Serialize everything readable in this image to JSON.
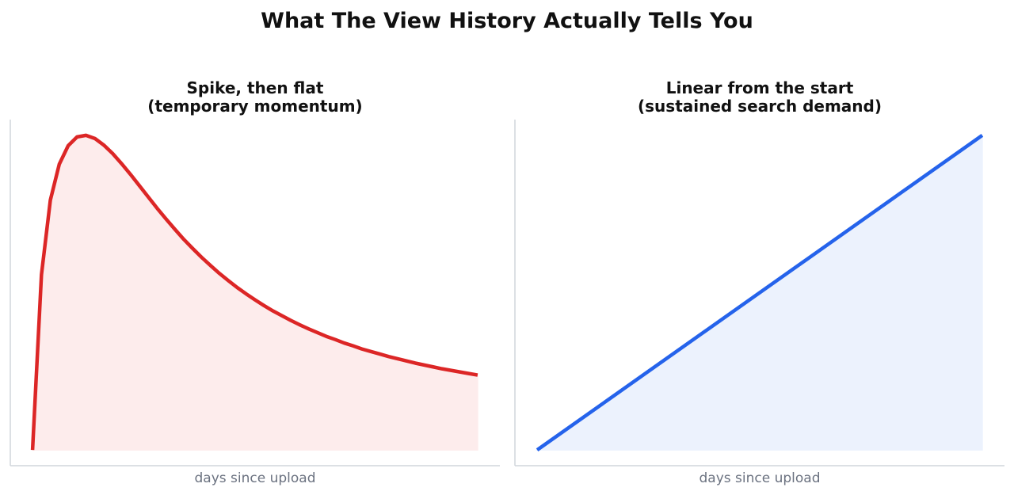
{
  "figure": {
    "title": "What The View History Actually Tells You"
  },
  "chart_data": [
    {
      "type": "area",
      "title_lines": [
        "Spike, then flat",
        "(temporary momentum)"
      ],
      "xlabel": "days since upload",
      "ylabel": "",
      "x": [
        0,
        2,
        4,
        6,
        8,
        10,
        12,
        14,
        16,
        18,
        20,
        22,
        24,
        26,
        28,
        30,
        32,
        34,
        36,
        38,
        40,
        42,
        44,
        46,
        48,
        50,
        52,
        54,
        56,
        58,
        60,
        62,
        64,
        66,
        68,
        70,
        72,
        74,
        76,
        78,
        80,
        82,
        84,
        86,
        88,
        90,
        92,
        94,
        96,
        98,
        100
      ],
      "values": [
        0,
        0.557,
        0.794,
        0.908,
        0.967,
        0.995,
        1.0,
        0.99,
        0.969,
        0.942,
        0.91,
        0.876,
        0.84,
        0.804,
        0.768,
        0.734,
        0.701,
        0.669,
        0.64,
        0.612,
        0.586,
        0.561,
        0.538,
        0.516,
        0.496,
        0.477,
        0.459,
        0.442,
        0.427,
        0.412,
        0.398,
        0.385,
        0.373,
        0.361,
        0.351,
        0.34,
        0.331,
        0.321,
        0.313,
        0.305,
        0.297,
        0.29,
        0.283,
        0.276,
        0.27,
        0.264,
        0.258,
        0.253,
        0.248,
        0.243,
        0.238
      ],
      "line_color": "#dc2626",
      "fill_color": "#fdecec",
      "label_color": "#6b7280",
      "xlim": [
        -5,
        105
      ],
      "ylim": [
        -0.05,
        1.05
      ],
      "grid": false
    },
    {
      "type": "area",
      "title_lines": [
        "Linear from the start",
        "(sustained search demand)"
      ],
      "xlabel": "days since upload",
      "ylabel": "",
      "x": [
        0,
        100
      ],
      "values": [
        0,
        1
      ],
      "line_color": "#2563eb",
      "fill_color": "#ecf2fd",
      "label_color": "#6b7280",
      "xlim": [
        -5,
        105
      ],
      "ylim": [
        -0.05,
        1.05
      ],
      "grid": false
    }
  ]
}
